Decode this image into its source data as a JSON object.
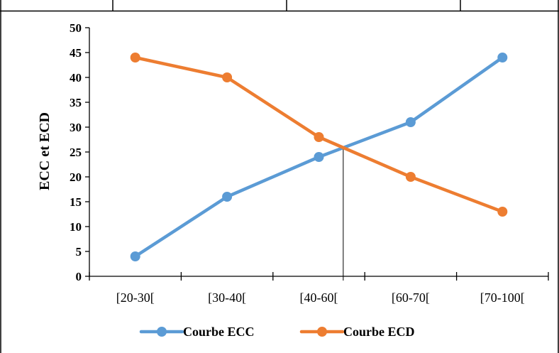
{
  "chart_data": {
    "type": "line",
    "categories": [
      "[20-30[",
      "[30-40[",
      "[40-60[",
      "[60-70[",
      "[70-100["
    ],
    "series": [
      {
        "name": "Courbe ECC",
        "values": [
          4,
          16,
          24,
          31,
          44
        ],
        "color": "#5b9bd5"
      },
      {
        "name": "Courbe ECD",
        "values": [
          44,
          40,
          28,
          20,
          13
        ],
        "color": "#ed7d31"
      }
    ],
    "ylabel": "ECC et ECD",
    "xlabel": "",
    "ylim": [
      0,
      50
    ],
    "yticks": [
      0,
      5,
      10,
      15,
      20,
      25,
      30,
      35,
      40,
      45,
      50
    ],
    "grid": false,
    "legend": "bottom",
    "annotation": {
      "type": "vertical-line",
      "y": 26,
      "color": "#000000"
    }
  }
}
